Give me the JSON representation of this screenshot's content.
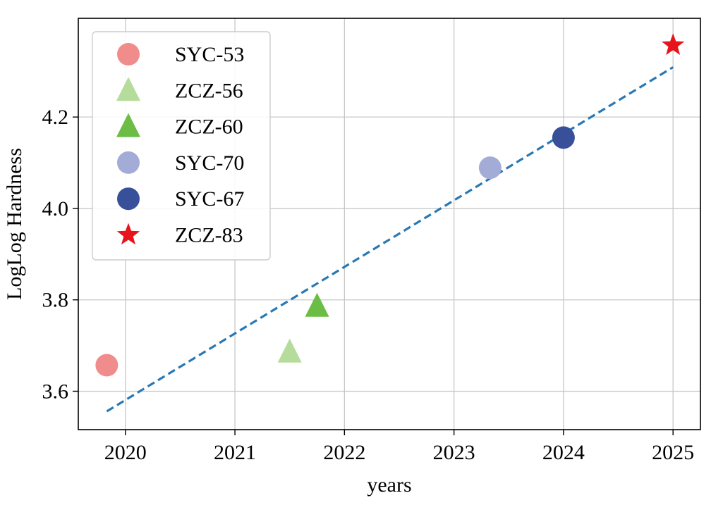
{
  "chart_data": {
    "type": "scatter",
    "xlabel": "years",
    "ylabel": "LogLog Hardness",
    "xlim": [
      2019.57,
      2025.25
    ],
    "ylim": [
      3.516,
      4.416
    ],
    "x_ticks": [
      2020,
      2021,
      2022,
      2023,
      2024,
      2025
    ],
    "x_tick_labels": [
      "2020",
      "2021",
      "2022",
      "2023",
      "2024",
      "2025"
    ],
    "y_ticks": [
      3.6,
      3.8,
      4.0,
      4.2
    ],
    "y_tick_labels": [
      "3.6",
      "3.8",
      "4.0",
      "4.2"
    ],
    "grid": true,
    "legend_position": "upper-left",
    "series": [
      {
        "name": "SYC-53",
        "marker": "circle",
        "color": "#f08c8c",
        "x": [
          2019.83
        ],
        "y": [
          3.657
        ]
      },
      {
        "name": "ZCZ-56",
        "marker": "triangle",
        "color": "#b5dc9b",
        "x": [
          2021.5
        ],
        "y": [
          3.686
        ]
      },
      {
        "name": "ZCZ-60",
        "marker": "triangle",
        "color": "#6cbd45",
        "x": [
          2021.75
        ],
        "y": [
          3.786
        ]
      },
      {
        "name": "SYC-70",
        "marker": "circle",
        "color": "#a3acd6",
        "x": [
          2023.33
        ],
        "y": [
          4.089
        ]
      },
      {
        "name": "SYC-67",
        "marker": "circle",
        "color": "#38509a",
        "x": [
          2024.0
        ],
        "y": [
          4.155
        ]
      },
      {
        "name": "ZCZ-83",
        "marker": "star",
        "color": "#e8141c",
        "x": [
          2025.0
        ],
        "y": [
          4.357
        ]
      }
    ],
    "trend_line": {
      "style": "dashed",
      "color": "#2878b5",
      "x": [
        2019.83,
        2025.0
      ],
      "y": [
        3.556,
        4.309
      ]
    }
  }
}
